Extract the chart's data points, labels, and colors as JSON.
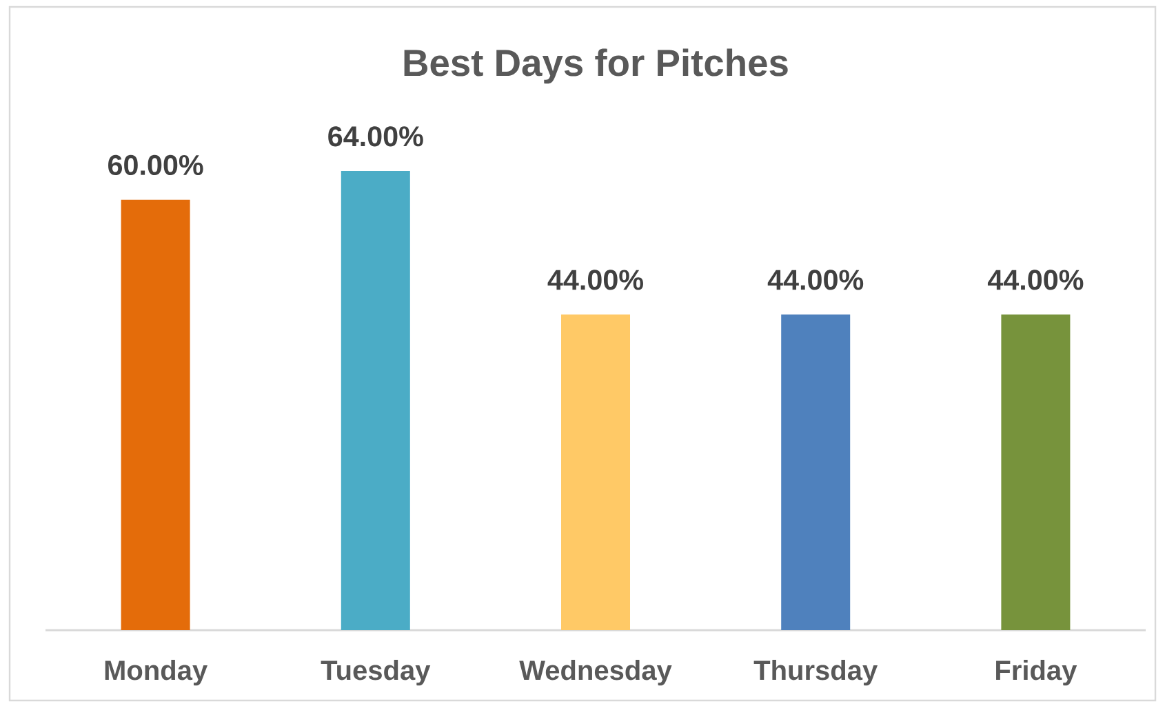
{
  "chart_data": {
    "type": "bar",
    "title": "Best Days for Pitches",
    "categories": [
      "Monday",
      "Tuesday",
      "Wednesday",
      "Thursday",
      "Friday"
    ],
    "values": [
      60,
      64,
      44,
      44,
      44
    ],
    "colors": [
      "#e46c0a",
      "#4bacc6",
      "#ffc966",
      "#4f81bd",
      "#77933c"
    ],
    "value_labels": [
      "60.00%",
      "64.00%",
      "44.00%",
      "44.00%",
      "44.00%"
    ],
    "tick_labels": "x"
  }
}
